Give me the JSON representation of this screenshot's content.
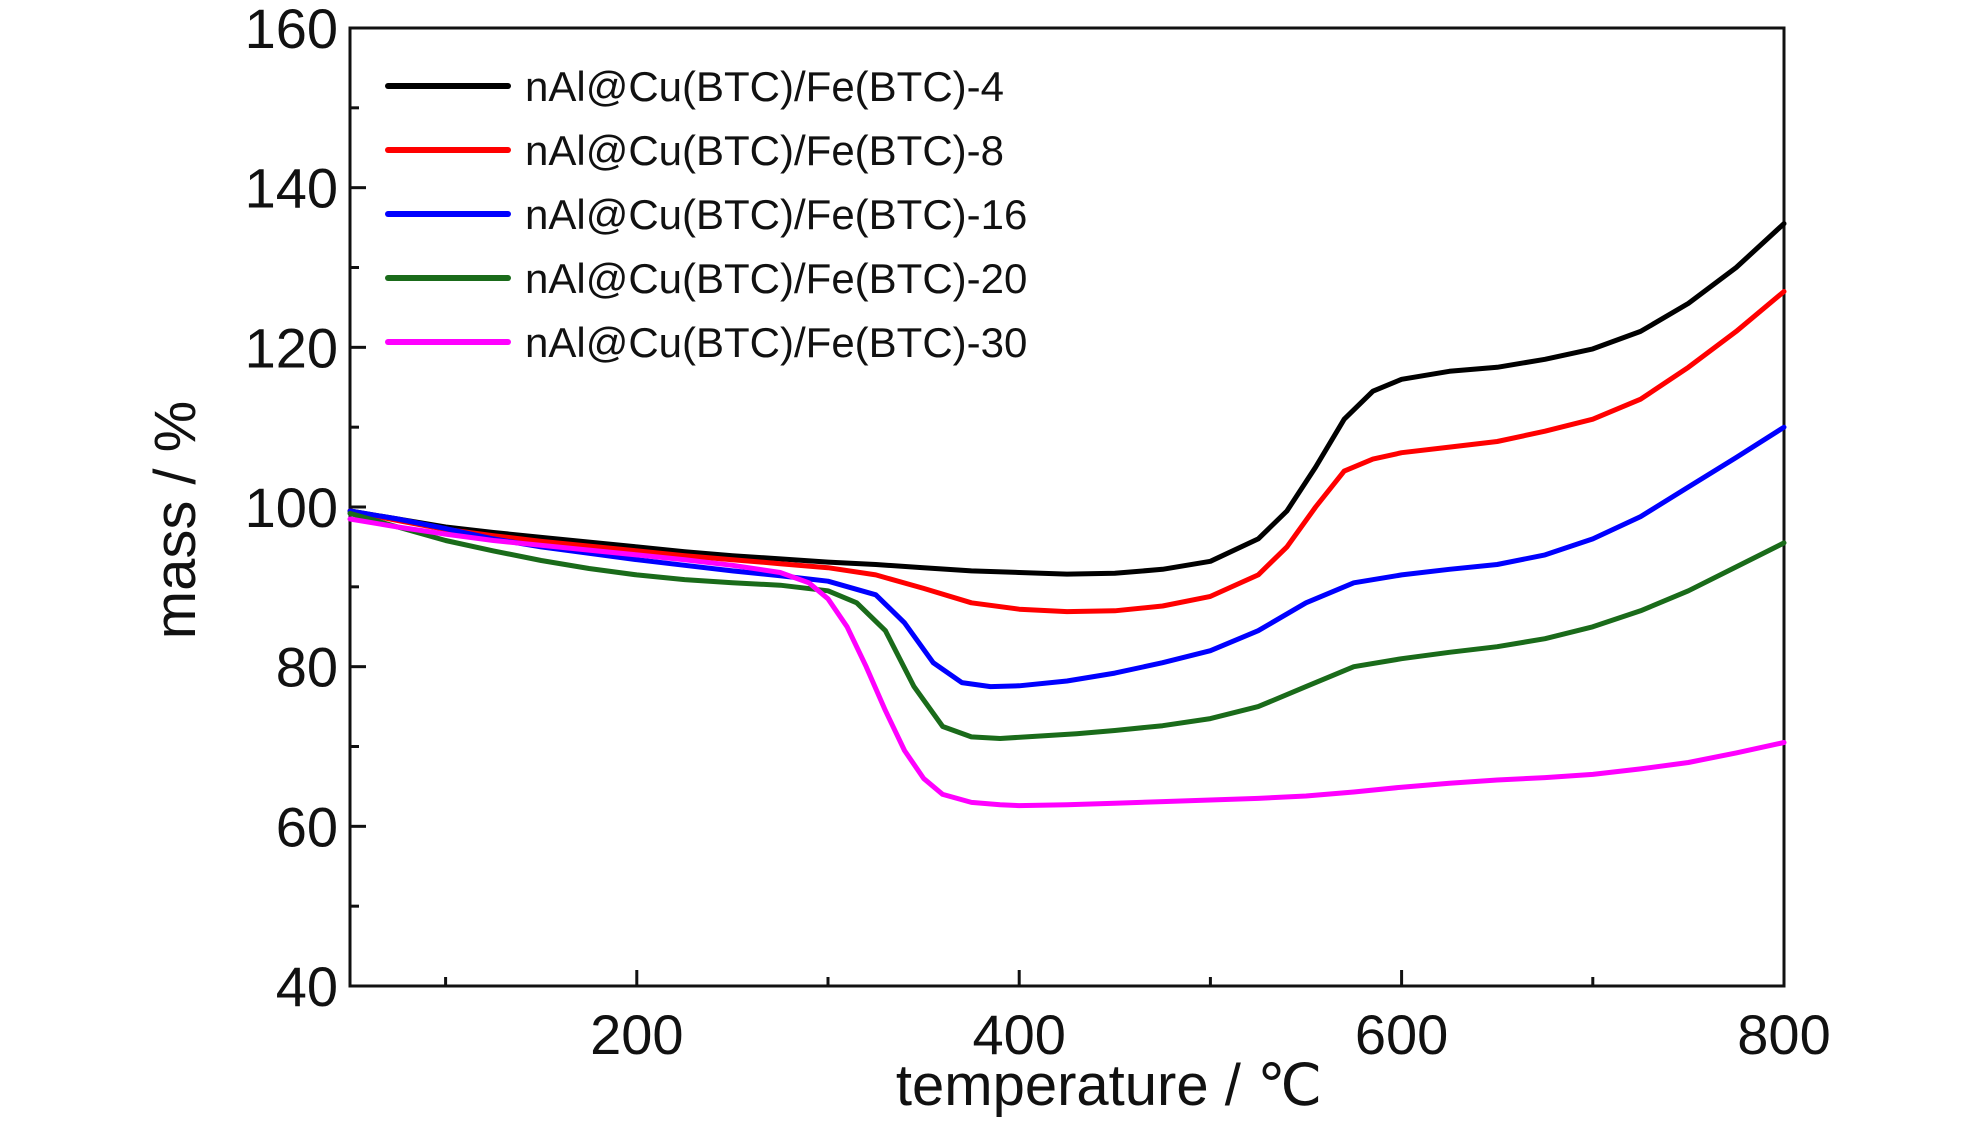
{
  "chart_data": {
    "type": "line",
    "title": "",
    "xlabel": "temperature / ℃",
    "ylabel": "mass / %",
    "xlim": [
      50,
      800
    ],
    "ylim": [
      40,
      160
    ],
    "x_ticks": [
      200,
      400,
      600,
      800
    ],
    "x_minor_ticks": [
      100,
      300,
      500,
      700
    ],
    "y_ticks": [
      40,
      60,
      80,
      100,
      120,
      140,
      160
    ],
    "y_minor_ticks": [
      50,
      70,
      90,
      110,
      130,
      150
    ],
    "grid": false,
    "legend_position": "top-left",
    "series": [
      {
        "name": "nAl@Cu(BTC)/Fe(BTC)-4",
        "color": "#000000",
        "x": [
          50,
          75,
          100,
          125,
          150,
          175,
          200,
          225,
          250,
          275,
          300,
          325,
          350,
          375,
          400,
          425,
          450,
          475,
          500,
          525,
          540,
          555,
          570,
          585,
          600,
          625,
          650,
          675,
          700,
          725,
          750,
          775,
          800
        ],
        "y": [
          99.5,
          98.5,
          97.5,
          96.8,
          96.2,
          95.6,
          95.0,
          94.4,
          93.9,
          93.5,
          93.1,
          92.8,
          92.4,
          92.0,
          91.8,
          91.6,
          91.7,
          92.2,
          93.2,
          96.0,
          99.5,
          105.0,
          111.0,
          114.5,
          116.0,
          117.0,
          117.5,
          118.5,
          119.8,
          122.0,
          125.5,
          130.0,
          135.5
        ]
      },
      {
        "name": "nAl@Cu(BTC)/Fe(BTC)-8",
        "color": "#ff0000",
        "x": [
          50,
          75,
          100,
          125,
          150,
          175,
          200,
          225,
          250,
          275,
          300,
          325,
          350,
          375,
          400,
          425,
          450,
          475,
          500,
          525,
          540,
          555,
          570,
          585,
          600,
          625,
          650,
          675,
          700,
          725,
          750,
          775,
          800
        ],
        "y": [
          99.5,
          98.3,
          97.2,
          96.4,
          95.7,
          95.1,
          94.5,
          93.9,
          93.4,
          92.9,
          92.4,
          91.5,
          89.8,
          88.0,
          87.2,
          86.9,
          87.0,
          87.6,
          88.8,
          91.5,
          95.0,
          100.0,
          104.5,
          106.0,
          106.8,
          107.5,
          108.2,
          109.5,
          111.0,
          113.5,
          117.5,
          122.0,
          127.0
        ]
      },
      {
        "name": "nAl@Cu(BTC)/Fe(BTC)-16",
        "color": "#0000ff",
        "x": [
          50,
          75,
          100,
          125,
          150,
          175,
          200,
          225,
          250,
          275,
          300,
          325,
          340,
          355,
          370,
          385,
          400,
          425,
          450,
          475,
          500,
          525,
          550,
          575,
          600,
          625,
          650,
          675,
          700,
          725,
          750,
          775,
          800
        ],
        "y": [
          99.5,
          98.5,
          97.3,
          96.0,
          95.0,
          94.2,
          93.4,
          92.7,
          92.0,
          91.4,
          90.7,
          89.0,
          85.5,
          80.5,
          78.0,
          77.5,
          77.6,
          78.2,
          79.2,
          80.5,
          82.0,
          84.5,
          88.0,
          90.5,
          91.5,
          92.2,
          92.8,
          94.0,
          96.0,
          98.8,
          102.5,
          106.2,
          110.0
        ]
      },
      {
        "name": "nAl@Cu(BTC)/Fe(BTC)-20",
        "color": "#1a6b1a",
        "x": [
          50,
          75,
          100,
          125,
          150,
          175,
          200,
          225,
          250,
          275,
          300,
          315,
          330,
          345,
          360,
          375,
          390,
          410,
          430,
          450,
          475,
          500,
          525,
          550,
          575,
          600,
          625,
          650,
          675,
          700,
          725,
          750,
          775,
          800
        ],
        "y": [
          99.2,
          97.5,
          95.8,
          94.5,
          93.3,
          92.3,
          91.5,
          90.9,
          90.5,
          90.2,
          89.5,
          88.0,
          84.5,
          77.5,
          72.5,
          71.2,
          71.0,
          71.3,
          71.6,
          72.0,
          72.6,
          73.5,
          75.0,
          77.5,
          80.0,
          81.0,
          81.8,
          82.5,
          83.5,
          85.0,
          87.0,
          89.5,
          92.5,
          95.5
        ]
      },
      {
        "name": "nAl@Cu(BTC)/Fe(BTC)-30",
        "color": "#ff00ff",
        "x": [
          50,
          75,
          100,
          125,
          150,
          175,
          200,
          225,
          250,
          275,
          290,
          300,
          310,
          320,
          330,
          340,
          350,
          360,
          375,
          390,
          400,
          425,
          450,
          475,
          500,
          525,
          550,
          575,
          600,
          625,
          650,
          675,
          700,
          725,
          750,
          775,
          800
        ],
        "y": [
          98.5,
          97.5,
          96.6,
          95.8,
          95.2,
          94.6,
          94.0,
          93.4,
          92.7,
          91.8,
          90.5,
          88.5,
          85.0,
          80.0,
          74.5,
          69.5,
          66.0,
          64.0,
          63.0,
          62.7,
          62.6,
          62.7,
          62.9,
          63.1,
          63.3,
          63.5,
          63.8,
          64.3,
          64.9,
          65.4,
          65.8,
          66.1,
          66.5,
          67.2,
          68.0,
          69.2,
          70.5
        ]
      }
    ]
  }
}
